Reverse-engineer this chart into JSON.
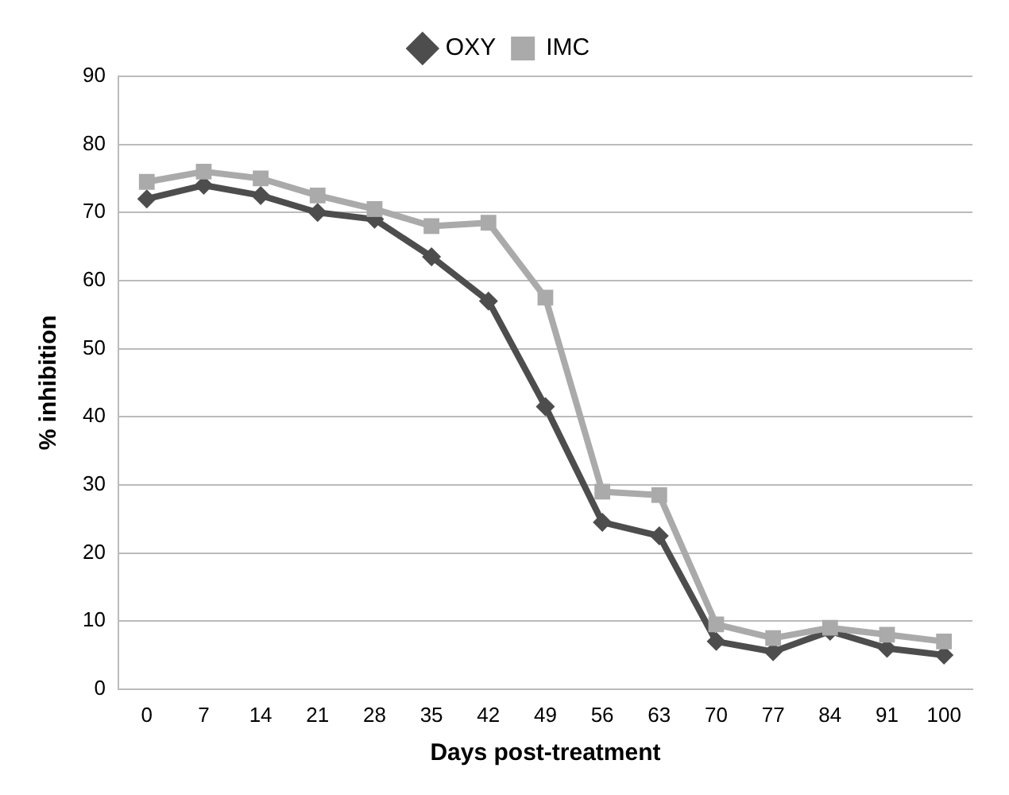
{
  "chart_data": {
    "type": "line",
    "xlabel": "Days post-treatment",
    "ylabel": "% inhibition",
    "categories": [
      "0",
      "7",
      "14",
      "21",
      "28",
      "35",
      "42",
      "49",
      "56",
      "63",
      "70",
      "77",
      "84",
      "91",
      "100"
    ],
    "series": [
      {
        "name": "OXY",
        "color": "#4d4d4d",
        "marker": "diamond",
        "values": [
          72,
          74,
          72.5,
          70,
          69,
          63.5,
          57,
          41.5,
          24.5,
          22.5,
          7,
          5.5,
          8.5,
          6,
          5
        ]
      },
      {
        "name": "IMC",
        "color": "#aaaaaa",
        "marker": "square",
        "values": [
          74.5,
          76,
          75,
          72.5,
          70.5,
          68,
          68.5,
          57.5,
          29,
          28.5,
          9.5,
          7.5,
          9,
          8,
          7
        ]
      }
    ],
    "ylim": [
      0,
      90
    ],
    "yticks": [
      0,
      10,
      20,
      30,
      40,
      50,
      60,
      70,
      80,
      90
    ],
    "grid": "y",
    "legend": "top",
    "line_style": "solid"
  }
}
